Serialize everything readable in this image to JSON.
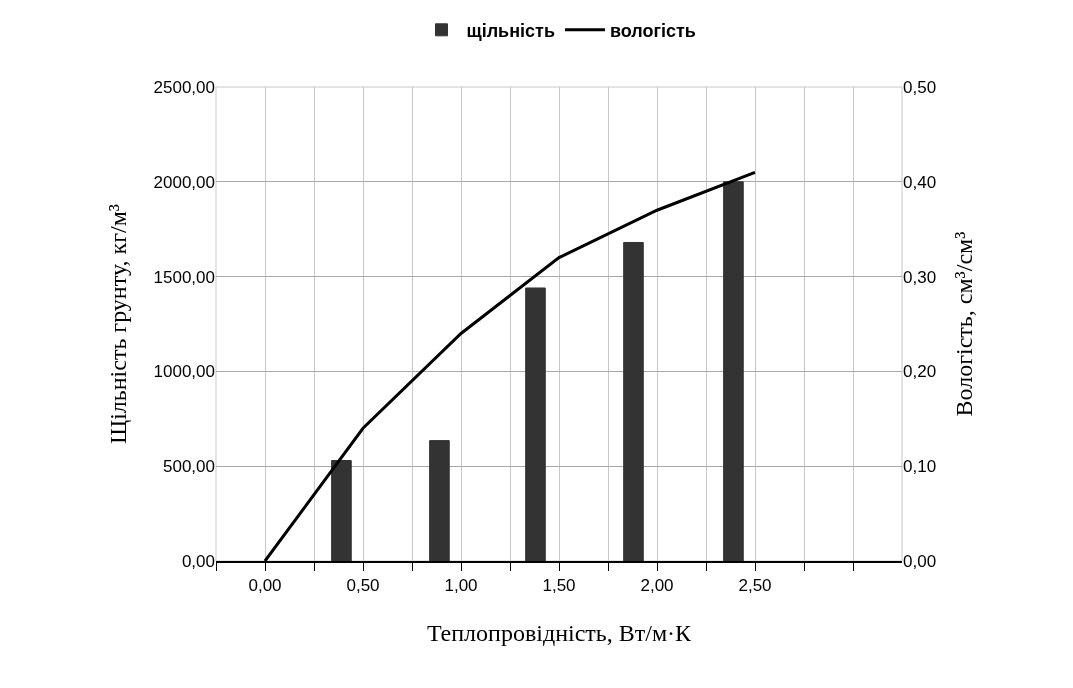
{
  "chart_data": {
    "type": "bar",
    "xlabel": "Теплопровідність, Вт/м·К",
    "ylabel": "Щільність грунту, кг/м³",
    "y2label": "Вологість, см³/см³",
    "legend": "top",
    "grid": true,
    "xlim": [
      -0.25,
      3.25
    ],
    "xticks": [
      {
        "value": -0.25,
        "label": null
      },
      {
        "value": 0,
        "label": "0,00"
      },
      {
        "value": 0.25,
        "label": null
      },
      {
        "value": 0.5,
        "label": "0,50"
      },
      {
        "value": 0.75,
        "label": null
      },
      {
        "value": 1,
        "label": "1,00"
      },
      {
        "value": 1.25,
        "label": null
      },
      {
        "value": 1.5,
        "label": "1,50"
      },
      {
        "value": 1.75,
        "label": null
      },
      {
        "value": 2,
        "label": "2,00"
      },
      {
        "value": 2.25,
        "label": null
      },
      {
        "value": 2.5,
        "label": "2,50"
      },
      {
        "value": 2.75,
        "label": null
      },
      {
        "value": 3,
        "label": null
      }
    ],
    "ylim": [
      0,
      2500
    ],
    "yticks": [
      {
        "value": 0,
        "label": "0,00"
      },
      {
        "value": 500,
        "label": "500,00"
      },
      {
        "value": 1000,
        "label": "1000,00"
      },
      {
        "value": 1500,
        "label": "1500,00"
      },
      {
        "value": 2000,
        "label": "2000,00"
      },
      {
        "value": 2500,
        "label": "2500,00"
      }
    ],
    "y2lim": [
      0,
      0.5
    ],
    "y2ticks": [
      {
        "value": 0,
        "label": "0,00"
      },
      {
        "value": 0.1,
        "label": "0,10"
      },
      {
        "value": 0.2,
        "label": "0,20"
      },
      {
        "value": 0.3,
        "label": "0,30"
      },
      {
        "value": 0.4,
        "label": "0,40"
      },
      {
        "value": 0.5,
        "label": "0,50"
      }
    ],
    "series": [
      {
        "name": "щільність",
        "color": "#333333",
        "x": [
          0.39,
          0.89,
          1.38,
          1.88,
          2.39
        ],
        "values": [
          530,
          635,
          1440,
          1680,
          2000
        ]
      },
      {
        "name": "вологість",
        "type": "line",
        "axis": "y2",
        "color": "#000000",
        "marker": "none",
        "line_style": "solid",
        "x": [
          0,
          0.5,
          1,
          1.25,
          1.5,
          2,
          2.5
        ],
        "values": [
          0,
          0.14,
          0.24,
          0.28,
          0.32,
          0.37,
          0.41
        ]
      }
    ]
  }
}
